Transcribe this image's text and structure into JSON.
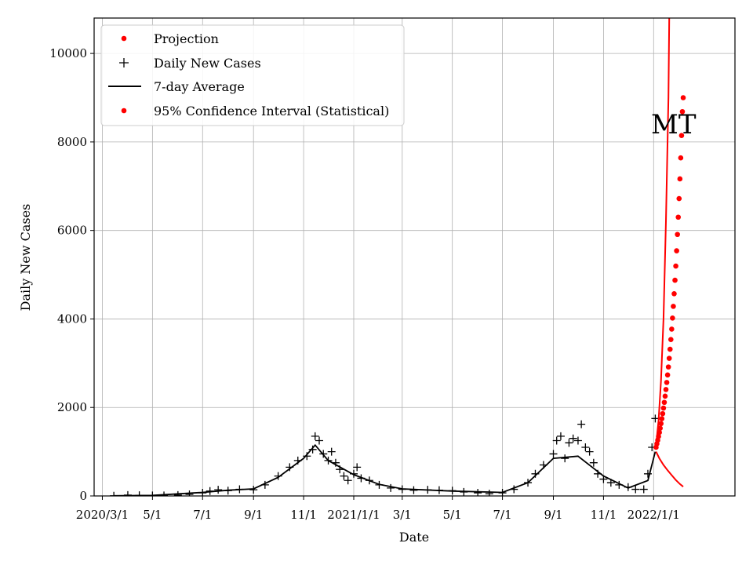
{
  "chart_data": {
    "type": "scatter",
    "title": "",
    "annotation": "MT",
    "xlabel": "Date",
    "ylabel": "Daily New Cases",
    "xlim_day": [
      -10,
      770
    ],
    "ylim": [
      0,
      10800
    ],
    "x_ticks": [
      {
        "date": "2020-03-01",
        "label": "2020/3/1"
      },
      {
        "date": "2020-05-01",
        "label": "5/1"
      },
      {
        "date": "2020-07-01",
        "label": "7/1"
      },
      {
        "date": "2020-09-01",
        "label": "9/1"
      },
      {
        "date": "2020-11-01",
        "label": "11/1"
      },
      {
        "date": "2021-01-01",
        "label": "2021/1/1"
      },
      {
        "date": "2021-03-01",
        "label": "3/1"
      },
      {
        "date": "2021-05-01",
        "label": "5/1"
      },
      {
        "date": "2021-07-01",
        "label": "7/1"
      },
      {
        "date": "2021-09-01",
        "label": "9/1"
      },
      {
        "date": "2021-11-01",
        "label": "11/1"
      },
      {
        "date": "2022-01-01",
        "label": "2022/1/1"
      }
    ],
    "y_ticks": [
      0,
      2000,
      4000,
      6000,
      8000,
      10000
    ],
    "y_tick_labels": [
      "0",
      "2000",
      "4000",
      "6000",
      "8000",
      "10000"
    ],
    "grid": true,
    "legend": {
      "placement": "top-left",
      "entries": [
        {
          "label": "Projection",
          "marker": "dot",
          "color": "#ff0000"
        },
        {
          "label": "Daily New Cases",
          "marker": "plus",
          "color": "#000000"
        },
        {
          "label": "7-day Average",
          "marker": "line",
          "color": "#000000"
        },
        {
          "label": "95% Confidence Interval (Statistical)",
          "marker": "dot",
          "color": "#ff0000"
        }
      ]
    },
    "series": [
      {
        "name": "Daily New Cases",
        "color": "#000000",
        "marker": "plus",
        "points": [
          [
            "2020-03-15",
            5
          ],
          [
            "2020-04-01",
            20
          ],
          [
            "2020-04-15",
            15
          ],
          [
            "2020-05-01",
            10
          ],
          [
            "2020-05-15",
            12
          ],
          [
            "2020-06-01",
            20
          ],
          [
            "2020-06-15",
            35
          ],
          [
            "2020-07-01",
            70
          ],
          [
            "2020-07-10",
            110
          ],
          [
            "2020-07-20",
            140
          ],
          [
            "2020-08-01",
            120
          ],
          [
            "2020-08-15",
            150
          ],
          [
            "2020-09-01",
            140
          ],
          [
            "2020-09-15",
            250
          ],
          [
            "2020-10-01",
            450
          ],
          [
            "2020-10-15",
            650
          ],
          [
            "2020-10-25",
            800
          ],
          [
            "2020-11-05",
            900
          ],
          [
            "2020-11-12",
            1050
          ],
          [
            "2020-11-15",
            1350
          ],
          [
            "2020-11-20",
            1250
          ],
          [
            "2020-11-25",
            950
          ],
          [
            "2020-12-01",
            800
          ],
          [
            "2020-12-05",
            1000
          ],
          [
            "2020-12-10",
            750
          ],
          [
            "2020-12-15",
            600
          ],
          [
            "2020-12-20",
            450
          ],
          [
            "2020-12-25",
            350
          ],
          [
            "2021-01-01",
            500
          ],
          [
            "2021-01-05",
            650
          ],
          [
            "2021-01-10",
            400
          ],
          [
            "2021-01-20",
            350
          ],
          [
            "2021-02-01",
            250
          ],
          [
            "2021-02-15",
            180
          ],
          [
            "2021-03-01",
            150
          ],
          [
            "2021-03-15",
            130
          ],
          [
            "2021-04-01",
            140
          ],
          [
            "2021-04-15",
            130
          ],
          [
            "2021-05-01",
            120
          ],
          [
            "2021-05-15",
            90
          ],
          [
            "2021-06-01",
            70
          ],
          [
            "2021-06-15",
            50
          ],
          [
            "2021-07-01",
            70
          ],
          [
            "2021-07-15",
            150
          ],
          [
            "2021-08-01",
            300
          ],
          [
            "2021-08-10",
            500
          ],
          [
            "2021-08-20",
            700
          ],
          [
            "2021-09-01",
            950
          ],
          [
            "2021-09-05",
            1250
          ],
          [
            "2021-09-10",
            1350
          ],
          [
            "2021-09-15",
            850
          ],
          [
            "2021-09-20",
            1200
          ],
          [
            "2021-09-25",
            1300
          ],
          [
            "2021-10-01",
            1250
          ],
          [
            "2021-10-05",
            1620
          ],
          [
            "2021-10-10",
            1100
          ],
          [
            "2021-10-15",
            1000
          ],
          [
            "2021-10-20",
            750
          ],
          [
            "2021-10-25",
            500
          ],
          [
            "2021-11-01",
            380
          ],
          [
            "2021-11-10",
            300
          ],
          [
            "2021-11-20",
            250
          ],
          [
            "2021-12-01",
            200
          ],
          [
            "2021-12-10",
            150
          ],
          [
            "2021-12-20",
            150
          ],
          [
            "2021-12-25",
            500
          ],
          [
            "2021-12-30",
            1100
          ],
          [
            "2022-01-03",
            1750
          ]
        ]
      },
      {
        "name": "7-day Average",
        "color": "#000000",
        "marker": "line",
        "points": [
          [
            "2020-03-15",
            3
          ],
          [
            "2020-05-01",
            12
          ],
          [
            "2020-07-01",
            80
          ],
          [
            "2020-08-01",
            130
          ],
          [
            "2020-09-01",
            160
          ],
          [
            "2020-10-01",
            420
          ],
          [
            "2020-11-01",
            850
          ],
          [
            "2020-11-15",
            1150
          ],
          [
            "2020-12-01",
            800
          ],
          [
            "2021-01-01",
            480
          ],
          [
            "2021-02-01",
            260
          ],
          [
            "2021-03-01",
            160
          ],
          [
            "2021-05-01",
            110
          ],
          [
            "2021-07-01",
            80
          ],
          [
            "2021-08-01",
            300
          ],
          [
            "2021-09-01",
            850
          ],
          [
            "2021-10-01",
            900
          ],
          [
            "2021-11-01",
            450
          ],
          [
            "2021-12-01",
            180
          ],
          [
            "2021-12-25",
            350
          ],
          [
            "2022-01-03",
            1000
          ]
        ]
      },
      {
        "name": "Projection",
        "color": "#ff0000",
        "marker": "dot",
        "points": [
          [
            "2022-01-04",
            1100
          ],
          [
            "2022-01-05",
            1180
          ],
          [
            "2022-01-06",
            1260
          ],
          [
            "2022-01-07",
            1345
          ],
          [
            "2022-01-08",
            1435
          ],
          [
            "2022-01-09",
            1530
          ],
          [
            "2022-01-10",
            1635
          ],
          [
            "2022-01-11",
            1745
          ],
          [
            "2022-01-12",
            1860
          ],
          [
            "2022-01-13",
            1985
          ],
          [
            "2022-01-14",
            2115
          ],
          [
            "2022-01-15",
            2255
          ],
          [
            "2022-01-16",
            2405
          ],
          [
            "2022-01-17",
            2565
          ],
          [
            "2022-01-18",
            2735
          ],
          [
            "2022-01-19",
            2915
          ],
          [
            "2022-01-20",
            3110
          ],
          [
            "2022-01-21",
            3315
          ],
          [
            "2022-01-22",
            3535
          ],
          [
            "2022-01-23",
            3770
          ],
          [
            "2022-01-24",
            4020
          ],
          [
            "2022-01-25",
            4285
          ],
          [
            "2022-01-26",
            4570
          ],
          [
            "2022-01-27",
            4875
          ],
          [
            "2022-01-28",
            5195
          ],
          [
            "2022-01-29",
            5540
          ],
          [
            "2022-01-30",
            5910
          ],
          [
            "2022-01-31",
            6300
          ],
          [
            "2022-02-01",
            6720
          ],
          [
            "2022-02-02",
            7165
          ],
          [
            "2022-02-03",
            7640
          ],
          [
            "2022-02-04",
            8145
          ],
          [
            "2022-02-05",
            8685
          ],
          [
            "2022-02-06",
            9000
          ]
        ]
      },
      {
        "name": "95% Confidence Interval (Statistical)",
        "color": "#ff0000",
        "marker": "line",
        "upper": [
          [
            "2022-01-04",
            1150
          ],
          [
            "2022-01-07",
            1700
          ],
          [
            "2022-01-10",
            2600
          ],
          [
            "2022-01-13",
            4000
          ],
          [
            "2022-01-16",
            6200
          ],
          [
            "2022-01-19",
            9000
          ],
          [
            "2022-01-20",
            10800
          ]
        ],
        "lower": [
          [
            "2022-01-04",
            1000
          ],
          [
            "2022-01-08",
            850
          ],
          [
            "2022-01-13",
            700
          ],
          [
            "2022-01-18",
            580
          ],
          [
            "2022-01-23",
            470
          ],
          [
            "2022-01-28",
            360
          ],
          [
            "2022-02-02",
            270
          ],
          [
            "2022-02-06",
            210
          ]
        ]
      }
    ]
  }
}
